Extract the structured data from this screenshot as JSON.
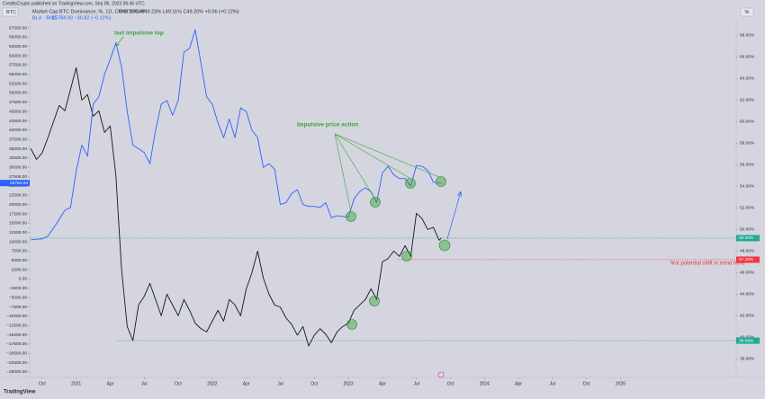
{
  "header": {
    "publisher": "CreditsCrypto published on TradingView.com, Sep 06, 2023 06:45 UTC",
    "symbol": "BTC",
    "scale_button": "%",
    "brand": "TradingView"
  },
  "chart_data": {
    "type": "line",
    "x": [
      -1,
      -0.5,
      0,
      0.5,
      1,
      1.5,
      2,
      2.5,
      3,
      3.5,
      4,
      4.5,
      5,
      5.5,
      6,
      6.5,
      7,
      7.5,
      8,
      8.5,
      9,
      9.5,
      10,
      10.5,
      11,
      11.5,
      12,
      12.5,
      13,
      13.5,
      14,
      14.5,
      15,
      15.5,
      16,
      16.5,
      17,
      17.5,
      18,
      18.5,
      19,
      19.5,
      20,
      20.5,
      21,
      21.5,
      22,
      22.5,
      23,
      23.5,
      24,
      24.5,
      25,
      25.5,
      26,
      26.5,
      27,
      27.5,
      28,
      28.5,
      29,
      29.5,
      30,
      30.5,
      31,
      31.5,
      32,
      32.5,
      33,
      33.5,
      34,
      34.5,
      35,
      35.2
    ],
    "series": [
      {
        "name": "Market Cap BTC Dominance, %, 1D, CRYPTOCAP",
        "legend_values": "O49.15% H49.23% L49.11% C49.20% +0.06 (+0.12%)",
        "color": "#131722",
        "axis": "y2",
        "values": [
          57.5,
          56.5,
          57.1,
          58.5,
          60,
          61.5,
          61,
          63,
          65,
          62,
          62.5,
          60.5,
          61,
          59,
          59.6,
          55,
          46.3,
          41,
          39.69,
          43,
          43.8,
          45,
          43.5,
          42,
          44,
          43,
          42,
          43.5,
          42.5,
          41.3,
          40.8,
          40.5,
          41.5,
          42.5,
          41.5,
          43.5,
          43,
          42,
          44.5,
          46,
          48,
          45.5,
          44,
          43,
          42.8,
          41.8,
          41.2,
          40.2,
          41,
          39.2,
          40.2,
          40.8,
          40.3,
          39.5,
          40.5,
          41,
          41.3,
          42.5,
          43,
          43.5,
          44.5,
          43.5,
          47,
          47.3,
          48,
          47.5,
          48.5,
          47.5,
          51.5,
          51,
          50,
          50.2,
          49,
          49.2
        ]
      },
      {
        "name": "BLX · BNC",
        "legend_values": "25784.93 −30.82 (−0.12%)",
        "color": "#2962ff",
        "values": [
          10500,
          10700,
          10800,
          11500,
          13700,
          16000,
          18500,
          19200,
          29000,
          36000,
          33000,
          47000,
          49000,
          55000,
          59000,
          63500,
          57000,
          45000,
          36000,
          35000,
          34000,
          31000,
          40000,
          47000,
          48000,
          44000,
          48000,
          61000,
          62000,
          67000,
          58000,
          49000,
          47000,
          42000,
          38000,
          43000,
          38000,
          46000,
          45000,
          40000,
          38000,
          30000,
          31000,
          29500,
          20000,
          20500,
          23000,
          24000,
          20000,
          19500,
          19500,
          19200,
          20500,
          16500,
          17000,
          16800,
          16600,
          21500,
          23500,
          24500,
          23500,
          20500,
          28500,
          30300,
          28000,
          27000,
          27000,
          25000,
          30500,
          30300,
          29200,
          26000,
          25800,
          25784.93
        ]
      }
    ],
    "xlim": [
      -1.1,
      61.2
    ],
    "xticks": [
      {
        "value": 0,
        "label": "Oct"
      },
      {
        "value": 3,
        "label": "2021"
      },
      {
        "value": 6,
        "label": "Apr"
      },
      {
        "value": 9,
        "label": "Jul"
      },
      {
        "value": 12,
        "label": "Oct"
      },
      {
        "value": 15,
        "label": "2022"
      },
      {
        "value": 18,
        "label": "Apr"
      },
      {
        "value": 21,
        "label": "Jul"
      },
      {
        "value": 24,
        "label": "Oct"
      },
      {
        "value": 27,
        "label": "2023"
      },
      {
        "value": 30,
        "label": "Apr"
      },
      {
        "value": 33,
        "label": "Jul"
      },
      {
        "value": 36,
        "label": "Oct"
      },
      {
        "value": 39,
        "label": "2024"
      },
      {
        "value": 42,
        "label": "Apr"
      },
      {
        "value": 45,
        "label": "Jul"
      },
      {
        "value": 48,
        "label": "Oct"
      },
      {
        "value": 51,
        "label": "2025"
      }
    ],
    "ylim": [
      -26460,
      69190
    ],
    "yticks": [
      {
        "value": -25000,
        "label": "−25000.00"
      },
      {
        "value": -22500,
        "label": "−22500.00"
      },
      {
        "value": -20000,
        "label": "−20000.00"
      },
      {
        "value": -17500,
        "label": "−17500.00"
      },
      {
        "value": -15000,
        "label": "−15000.00"
      },
      {
        "value": -12500,
        "label": "−12500.00"
      },
      {
        "value": -10000,
        "label": "−10000.00"
      },
      {
        "value": -7500,
        "label": "−7500.00"
      },
      {
        "value": -5000,
        "label": "−5000.00"
      },
      {
        "value": -2500,
        "label": "−2500.00"
      },
      {
        "value": 0,
        "label": "0.00"
      },
      {
        "value": 2500,
        "label": "2500.00"
      },
      {
        "value": 5000,
        "label": "5000.00"
      },
      {
        "value": 7500,
        "label": "7500.00"
      },
      {
        "value": 10000,
        "label": "10000.00"
      },
      {
        "value": 12500,
        "label": "12500.00"
      },
      {
        "value": 15000,
        "label": "15000.00"
      },
      {
        "value": 17500,
        "label": "17500.00"
      },
      {
        "value": 20000,
        "label": "20000.00"
      },
      {
        "value": 22500,
        "label": "22500.00"
      },
      {
        "value": 25000,
        "label": "25000.00"
      },
      {
        "value": 27500,
        "label": "27500.00"
      },
      {
        "value": 30000,
        "label": "30000.00"
      },
      {
        "value": 32500,
        "label": "32500.00"
      },
      {
        "value": 35000,
        "label": "35000.00"
      },
      {
        "value": 37500,
        "label": "37500.00"
      },
      {
        "value": 40000,
        "label": "40000.00"
      },
      {
        "value": 42500,
        "label": "42500.00"
      },
      {
        "value": 45000,
        "label": "45000.00"
      },
      {
        "value": 47500,
        "label": "47500.00"
      },
      {
        "value": 50000,
        "label": "50000.00"
      },
      {
        "value": 52500,
        "label": "52500.00"
      },
      {
        "value": 55000,
        "label": "55000.00"
      },
      {
        "value": 57500,
        "label": "57500.00"
      },
      {
        "value": 60000,
        "label": "60000.00"
      },
      {
        "value": 62500,
        "label": "62500.00"
      },
      {
        "value": 65000,
        "label": "65000.00"
      },
      {
        "value": 67500,
        "label": "67500.00"
      }
    ],
    "y2lim": [
      36.28,
      69.28
    ],
    "y2ticks": [
      {
        "value": 38,
        "label": "38.00%"
      },
      {
        "value": 40,
        "label": "40.00%"
      },
      {
        "value": 42,
        "label": "42.00%"
      },
      {
        "value": 44,
        "label": "44.00%"
      },
      {
        "value": 46,
        "label": "46.00%"
      },
      {
        "value": 48,
        "label": "48.00%"
      },
      {
        "value": 50,
        "label": "50.00%"
      },
      {
        "value": 52,
        "label": "52.00%"
      },
      {
        "value": 54,
        "label": "54.00%"
      },
      {
        "value": 56,
        "label": "56.00%"
      },
      {
        "value": 58,
        "label": "58.00%"
      },
      {
        "value": 60,
        "label": "60.00%"
      },
      {
        "value": 62,
        "label": "62.00%"
      },
      {
        "value": 64,
        "label": "64.00%"
      },
      {
        "value": 66,
        "label": "66.00%"
      },
      {
        "value": 68,
        "label": "68.00%"
      }
    ],
    "levels": [
      {
        "axis": "y2",
        "value": 49.2,
        "label": "49.20%",
        "color": "#22ab94",
        "x_start": -1.1
      },
      {
        "axis": "y2",
        "value": 47.2,
        "label": "47.20%",
        "color": "#f23645",
        "x_start": 31.3
      },
      {
        "axis": "y2",
        "value": 39.69,
        "label": "39.69%",
        "color": "#22ab94",
        "x_start": 6.6
      }
    ],
    "annotations": [
      "last impulsive top",
      "Impulsive price action",
      "first potential shift in trend here"
    ],
    "grid": false
  }
}
